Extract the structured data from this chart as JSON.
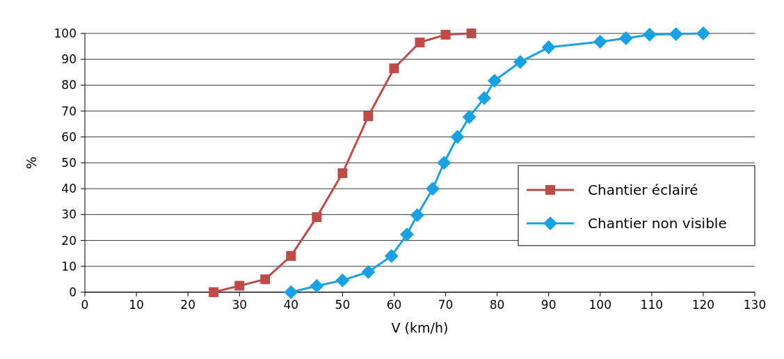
{
  "chart_data": {
    "type": "line",
    "xlabel": "V (km/h)",
    "ylabel": "%",
    "xlim": [
      0,
      130
    ],
    "xticks": [
      0,
      10,
      20,
      30,
      40,
      50,
      60,
      70,
      80,
      90,
      100,
      110,
      120,
      130
    ],
    "ylim": [
      0,
      100
    ],
    "yticks": [
      0,
      10,
      20,
      30,
      40,
      50,
      60,
      70,
      80,
      90,
      100
    ],
    "grid": "y",
    "legend": "center right",
    "line_style": "solid",
    "series": [
      {
        "name": "Chantier éclairé",
        "color": "#be4b48",
        "marker": "square",
        "x": [
          25,
          30,
          35,
          40,
          45,
          50,
          55,
          60,
          65,
          70,
          75
        ],
        "values": [
          0,
          2.5,
          5,
          14,
          29,
          46,
          68,
          86.5,
          96.5,
          99.5,
          100
        ]
      },
      {
        "name": "Chantier non visible",
        "color": "#1ba1e2",
        "marker": "diamond",
        "x": [
          40,
          45,
          50,
          55,
          59.5,
          62.5,
          64.5,
          67.5,
          69.7,
          72.3,
          74.6,
          77.5,
          79.5,
          84.5,
          90,
          100,
          105,
          109.6,
          114.7,
          120
        ],
        "values": [
          0,
          2.4,
          4.6,
          7.8,
          14,
          22.3,
          29.8,
          40,
          50,
          60,
          67.7,
          75,
          81.7,
          89,
          94.6,
          96.8,
          98.1,
          99.5,
          99.7,
          100
        ]
      }
    ]
  }
}
